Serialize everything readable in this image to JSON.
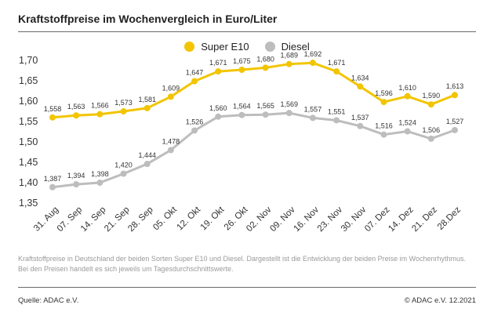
{
  "header": {
    "title": "Kraftstoffpreise im Wochenvergleich in Euro/Liter"
  },
  "footer": {
    "note": "Kraftstoffpreise in Deutschland der beiden Sorten Super E10 und Diesel. Dargestellt ist die Entwicklung der beiden Preise im Wochenrhythmus. Bei den Preisen handelt es sich jeweils um Tagesdurchschnittswerte.",
    "source": "Quelle: ADAC e.V.",
    "copyright": "© ADAC e.V. 12.2021"
  },
  "chart_data": {
    "type": "line",
    "title": "Kraftstoffpreise im Wochenvergleich in Euro/Liter",
    "xlabel": "",
    "ylabel": "",
    "categories": [
      "31. Aug",
      "07. Sep",
      "14. Sep",
      "21. Sep",
      "28. Sep",
      "05. Okt",
      "12. Okt",
      "19. Okt",
      "26. Okt",
      "02. Nov",
      "09. Nov",
      "16. Nov",
      "23. Nov",
      "30. Nov",
      "07. Dez",
      "14. Dez",
      "21. Dez",
      "28.Dez"
    ],
    "ylim": [
      1.35,
      1.7
    ],
    "yticks": [
      "1,35",
      "1,40",
      "1,45",
      "1,50",
      "1,55",
      "1,60",
      "1,65",
      "1,70"
    ],
    "grid": false,
    "legend": "top-center",
    "series": [
      {
        "name": "Super E10",
        "color": "#f2c500",
        "values": [
          1.558,
          1.563,
          1.566,
          1.573,
          1.581,
          1.609,
          1.647,
          1.671,
          1.675,
          1.68,
          1.689,
          1.692,
          1.671,
          1.634,
          1.596,
          1.61,
          1.59,
          1.613
        ],
        "labels": [
          "1,558",
          "1,563",
          "1,566",
          "1,573",
          "1,581",
          "1,609",
          "1,647",
          "1,671",
          "1,675",
          "1,680",
          "1,689",
          "1,692",
          "1,671",
          "1,634",
          "1,596",
          "1,610",
          "1,590",
          "1,613"
        ]
      },
      {
        "name": "Diesel",
        "color": "#bdbdbd",
        "values": [
          1.387,
          1.394,
          1.398,
          1.42,
          1.444,
          1.478,
          1.526,
          1.56,
          1.564,
          1.565,
          1.569,
          1.557,
          1.551,
          1.537,
          1.516,
          1.524,
          1.506,
          1.527
        ],
        "labels": [
          "1,387",
          "1,394",
          "1,398",
          "1,420",
          "1,444",
          "1,478",
          "1,526",
          "1,560",
          "1,564",
          "1,565",
          "1,569",
          "1,557",
          "1,551",
          "1,537",
          "1,516",
          "1,524",
          "1,506",
          "1,527"
        ]
      }
    ]
  }
}
